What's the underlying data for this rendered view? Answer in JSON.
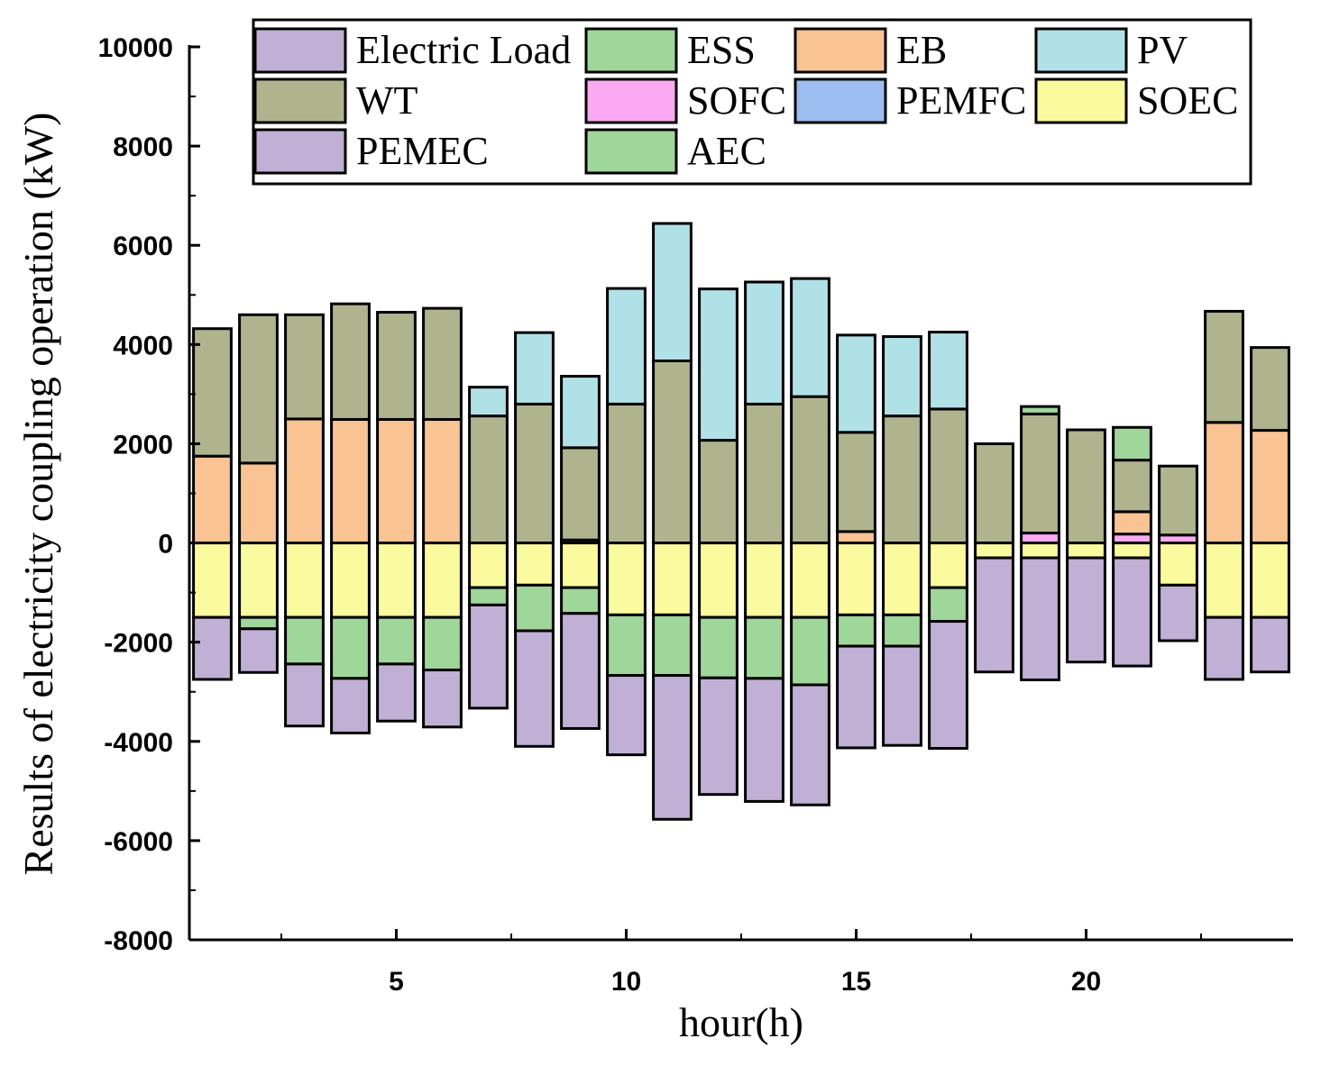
{
  "chart_data": {
    "type": "bar",
    "stacked": true,
    "xlabel": "hour(h)",
    "ylabel": "Results of electricity coupling operation (kW)",
    "ylim": [
      -8000,
      10000
    ],
    "yticks": [
      -8000,
      -6000,
      -4000,
      -2000,
      0,
      2000,
      4000,
      6000,
      8000,
      10000
    ],
    "xlim": [
      0.5,
      24.5
    ],
    "xticks": [
      5,
      10,
      15,
      20
    ],
    "legend_position": "top",
    "categories": [
      1,
      2,
      3,
      4,
      5,
      6,
      7,
      8,
      9,
      10,
      11,
      12,
      13,
      14,
      15,
      16,
      17,
      18,
      19,
      20,
      21,
      22,
      23,
      24
    ],
    "series": [
      {
        "name": "Electric Load",
        "color": "#c0b0d5",
        "values": [
          -1250,
          -880,
          -1250,
          -1100,
          -1150,
          -1150,
          -2080,
          -2330,
          -2320,
          -1600,
          -2900,
          -2350,
          -2480,
          -2420,
          -2050,
          -2000,
          -2560,
          -2300,
          -2460,
          -2100,
          -2180,
          -1120,
          -1250,
          -1100
        ]
      },
      {
        "name": "ESS",
        "color": "#9fd69a",
        "values": [
          0,
          -230,
          -940,
          -1230,
          -940,
          -1060,
          -350,
          -920,
          -520,
          -1220,
          -1220,
          -1220,
          -1230,
          -1360,
          -630,
          -630,
          -680,
          0,
          150,
          0,
          660,
          0,
          0,
          0
        ]
      },
      {
        "name": "EB",
        "color": "#fac393",
        "values": [
          1750,
          1610,
          2500,
          2490,
          2490,
          2490,
          0,
          0,
          0,
          0,
          0,
          0,
          0,
          0,
          230,
          0,
          0,
          0,
          0,
          0,
          450,
          0,
          2430,
          2270
        ]
      },
      {
        "name": "PV",
        "color": "#b0e1e7",
        "values": [
          0,
          0,
          0,
          0,
          0,
          0,
          580,
          1440,
          1440,
          2330,
          2770,
          3050,
          2460,
          2380,
          1960,
          1600,
          1550,
          0,
          0,
          0,
          0,
          0,
          0,
          0
        ]
      },
      {
        "name": "WT",
        "color": "#b0b48e",
        "values": [
          2570,
          2990,
          2100,
          2330,
          2160,
          2240,
          2560,
          2800,
          1860,
          2800,
          3670,
          2070,
          2800,
          2950,
          2000,
          2560,
          2700,
          2000,
          2400,
          2280,
          1040,
          1390,
          2240,
          1670
        ]
      },
      {
        "name": "SOFC",
        "color": "#faaaf0",
        "values": [
          0,
          0,
          0,
          0,
          0,
          0,
          0,
          0,
          0,
          0,
          0,
          0,
          0,
          0,
          0,
          0,
          0,
          0,
          200,
          0,
          180,
          160,
          0,
          0
        ]
      },
      {
        "name": "PEMFC",
        "color": "#9dbcf0",
        "values": [
          0,
          0,
          0,
          0,
          0,
          0,
          0,
          0,
          60,
          0,
          0,
          0,
          0,
          0,
          0,
          0,
          0,
          0,
          0,
          0,
          0,
          0,
          0,
          0
        ]
      },
      {
        "name": "SOEC",
        "color": "#fafa9e",
        "values": [
          -1500,
          -1500,
          -1500,
          -1500,
          -1500,
          -1500,
          -900,
          -850,
          -900,
          -1450,
          -1450,
          -1500,
          -1500,
          -1500,
          -1450,
          -1450,
          -900,
          -300,
          -300,
          -300,
          -300,
          -850,
          -1500,
          -1500
        ]
      },
      {
        "name": "PEMEC",
        "color": "#c0b0d5",
        "values": [
          0,
          0,
          0,
          0,
          0,
          0,
          0,
          0,
          0,
          0,
          0,
          0,
          0,
          0,
          0,
          0,
          0,
          0,
          0,
          0,
          0,
          0,
          0,
          0
        ]
      },
      {
        "name": "AEC",
        "color": "#9fd69a",
        "values": [
          0,
          0,
          0,
          0,
          0,
          0,
          0,
          0,
          0,
          0,
          0,
          0,
          0,
          0,
          0,
          0,
          0,
          0,
          0,
          0,
          0,
          0,
          0,
          0
        ]
      }
    ],
    "negative_stack_order": [
      "SOEC",
      "ESS",
      "EB",
      "Electric Load"
    ],
    "positive_stack_order": [
      "PEMFC",
      "SOFC",
      "EB",
      "WT",
      "PV",
      "ESS"
    ]
  }
}
